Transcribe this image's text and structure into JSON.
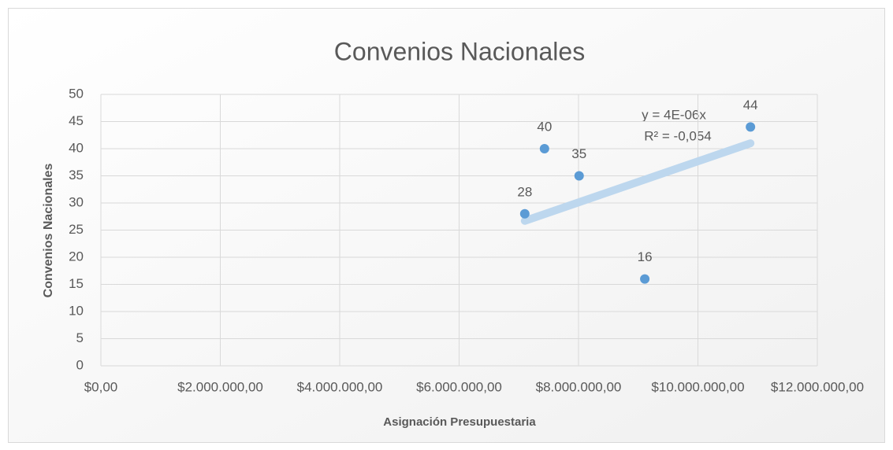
{
  "chart_data": {
    "type": "scatter",
    "title": "Convenios Nacionales",
    "x_label": "Asignación Presupuestaria",
    "y_label": "Convenios Nacionales",
    "x": [
      7100000,
      7430000,
      8010000,
      9110000,
      10880000
    ],
    "values": [
      28,
      40,
      35,
      16,
      44
    ],
    "color": "#5b9bd5",
    "trendline": {
      "x": [
        7100000,
        10880000
      ],
      "values": [
        26.7,
        41
      ],
      "color": "#bdd7ee"
    },
    "annotations": [
      "y = 4E-06x",
      "R² = -0,054"
    ],
    "xlim": [
      0,
      12000000
    ],
    "xticks": [
      {
        "value": 0,
        "label": "$0,00"
      },
      {
        "value": 2000000,
        "label": "$2.000.000,00"
      },
      {
        "value": 4000000,
        "label": "$4.000.000,00"
      },
      {
        "value": 6000000,
        "label": "$6.000.000,00"
      },
      {
        "value": 8000000,
        "label": "$8.000.000,00"
      },
      {
        "value": 10000000,
        "label": "$10.000.000,00"
      },
      {
        "value": 12000000,
        "label": "$12.000.000,00"
      }
    ],
    "ylim": [
      0,
      50
    ],
    "yticks": [
      0,
      5,
      10,
      15,
      20,
      25,
      30,
      35,
      40,
      45,
      50
    ],
    "grid": true
  }
}
